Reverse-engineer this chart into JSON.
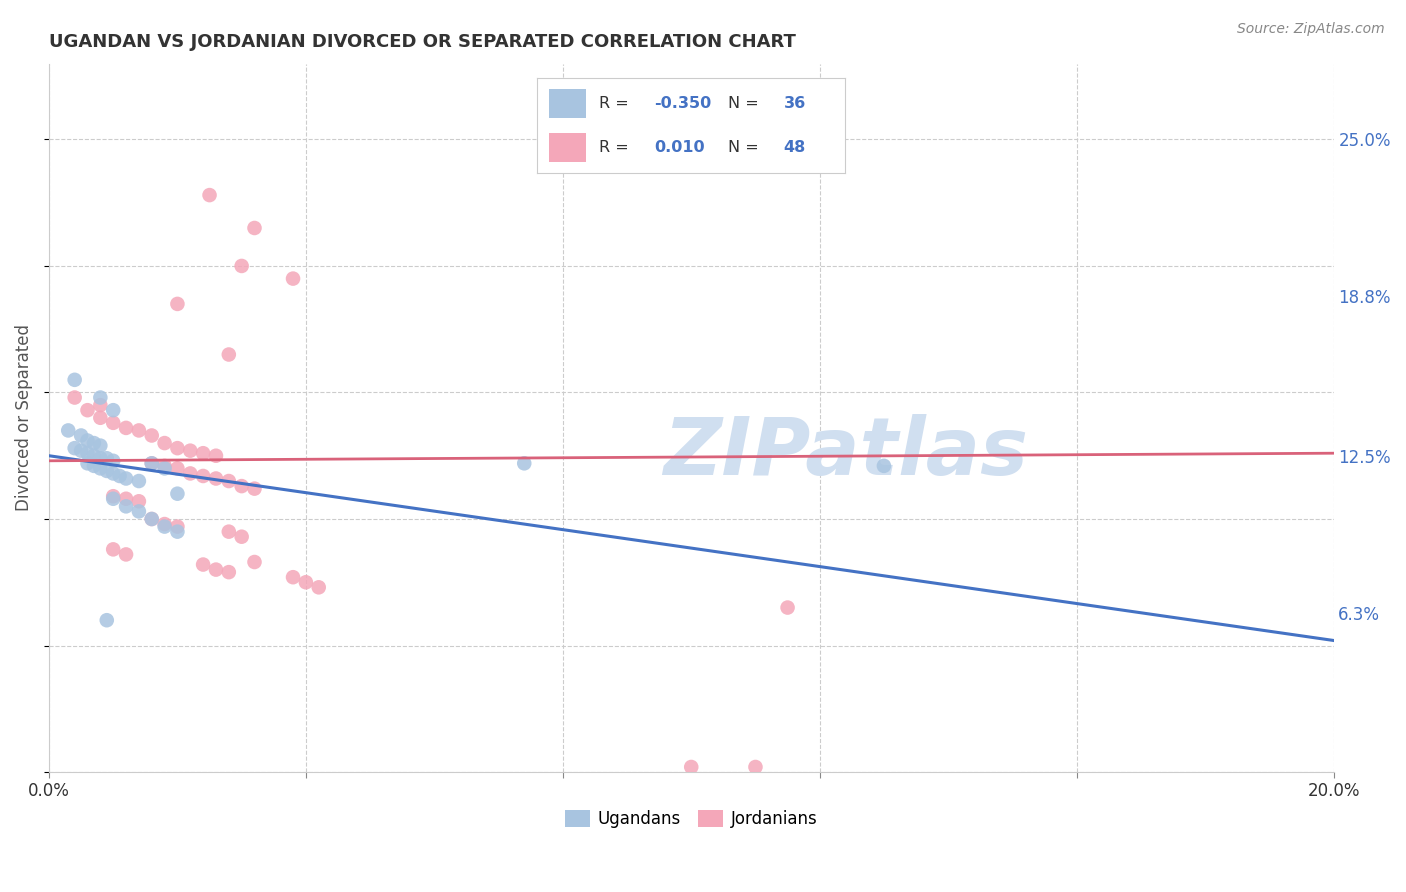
{
  "title": "UGANDAN VS JORDANIAN DIVORCED OR SEPARATED CORRELATION CHART",
  "source": "Source: ZipAtlas.com",
  "ylabel": "Divorced or Separated",
  "ytick_labels": [
    "6.3%",
    "12.5%",
    "18.8%",
    "25.0%"
  ],
  "ytick_values": [
    0.063,
    0.125,
    0.188,
    0.25
  ],
  "xlim": [
    0.0,
    0.2
  ],
  "ylim": [
    0.0,
    0.28
  ],
  "ugandan_color": "#a8c4e0",
  "jordanian_color": "#f4a7b9",
  "ugandan_line_color": "#4472c4",
  "jordanian_line_color": "#d9627a",
  "watermark_color": "#d0dff0",
  "background_color": "#ffffff",
  "ugandan_points": [
    [
      0.004,
      0.155
    ],
    [
      0.008,
      0.148
    ],
    [
      0.01,
      0.143
    ],
    [
      0.003,
      0.135
    ],
    [
      0.005,
      0.133
    ],
    [
      0.006,
      0.131
    ],
    [
      0.007,
      0.13
    ],
    [
      0.008,
      0.129
    ],
    [
      0.004,
      0.128
    ],
    [
      0.005,
      0.127
    ],
    [
      0.006,
      0.126
    ],
    [
      0.007,
      0.125
    ],
    [
      0.008,
      0.124
    ],
    [
      0.009,
      0.124
    ],
    [
      0.01,
      0.123
    ],
    [
      0.006,
      0.122
    ],
    [
      0.007,
      0.121
    ],
    [
      0.008,
      0.12
    ],
    [
      0.009,
      0.119
    ],
    [
      0.01,
      0.118
    ],
    [
      0.011,
      0.117
    ],
    [
      0.012,
      0.116
    ],
    [
      0.014,
      0.115
    ],
    [
      0.016,
      0.122
    ],
    [
      0.018,
      0.12
    ],
    [
      0.02,
      0.11
    ],
    [
      0.01,
      0.108
    ],
    [
      0.012,
      0.105
    ],
    [
      0.014,
      0.103
    ],
    [
      0.016,
      0.1
    ],
    [
      0.018,
      0.097
    ],
    [
      0.02,
      0.095
    ],
    [
      0.009,
      0.06
    ],
    [
      0.13,
      0.121
    ],
    [
      0.074,
      0.122
    ]
  ],
  "jordanian_points": [
    [
      0.025,
      0.228
    ],
    [
      0.032,
      0.215
    ],
    [
      0.03,
      0.2
    ],
    [
      0.038,
      0.195
    ],
    [
      0.02,
      0.185
    ],
    [
      0.028,
      0.165
    ],
    [
      0.004,
      0.148
    ],
    [
      0.008,
      0.145
    ],
    [
      0.006,
      0.143
    ],
    [
      0.008,
      0.14
    ],
    [
      0.01,
      0.138
    ],
    [
      0.012,
      0.136
    ],
    [
      0.014,
      0.135
    ],
    [
      0.016,
      0.133
    ],
    [
      0.018,
      0.13
    ],
    [
      0.02,
      0.128
    ],
    [
      0.022,
      0.127
    ],
    [
      0.024,
      0.126
    ],
    [
      0.026,
      0.125
    ],
    [
      0.016,
      0.122
    ],
    [
      0.018,
      0.121
    ],
    [
      0.02,
      0.12
    ],
    [
      0.022,
      0.118
    ],
    [
      0.024,
      0.117
    ],
    [
      0.026,
      0.116
    ],
    [
      0.028,
      0.115
    ],
    [
      0.03,
      0.113
    ],
    [
      0.032,
      0.112
    ],
    [
      0.01,
      0.109
    ],
    [
      0.012,
      0.108
    ],
    [
      0.014,
      0.107
    ],
    [
      0.016,
      0.1
    ],
    [
      0.018,
      0.098
    ],
    [
      0.02,
      0.097
    ],
    [
      0.028,
      0.095
    ],
    [
      0.03,
      0.093
    ],
    [
      0.01,
      0.088
    ],
    [
      0.012,
      0.086
    ],
    [
      0.032,
      0.083
    ],
    [
      0.024,
      0.082
    ],
    [
      0.026,
      0.08
    ],
    [
      0.028,
      0.079
    ],
    [
      0.038,
      0.077
    ],
    [
      0.04,
      0.075
    ],
    [
      0.042,
      0.073
    ],
    [
      0.115,
      0.065
    ],
    [
      0.1,
      0.002
    ],
    [
      0.11,
      0.002
    ]
  ],
  "ug_line": [
    [
      0.0,
      0.125
    ],
    [
      0.2,
      0.052
    ]
  ],
  "jo_line": [
    [
      0.0,
      0.123
    ],
    [
      0.2,
      0.126
    ]
  ]
}
